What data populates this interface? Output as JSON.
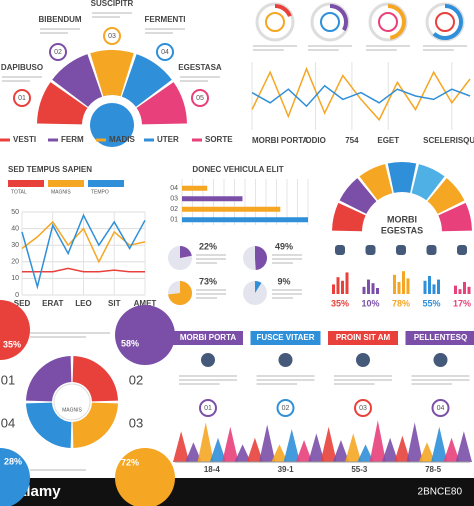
{
  "steps": {
    "items": [
      {
        "num": "01",
        "title": "DAPIBUSO"
      },
      {
        "num": "02",
        "title": "BIBENDUM"
      },
      {
        "num": "03",
        "title": "SUSCIPITR"
      },
      {
        "num": "04",
        "title": "FERMENTI"
      },
      {
        "num": "05",
        "title": "EGESTASA"
      }
    ],
    "legend": [
      {
        "name": "VESTI",
        "color": "#e8413c"
      },
      {
        "name": "FERM",
        "color": "#7b4fa8"
      },
      {
        "name": "MADIS",
        "color": "#f5a623"
      },
      {
        "name": "UTER",
        "color": "#2f8fd8"
      },
      {
        "name": "SORTE",
        "color": "#e8407a"
      }
    ]
  },
  "chart_data": [
    {
      "type": "line",
      "x": [
        0,
        1,
        2,
        3,
        4,
        5,
        6,
        7,
        8,
        9,
        10,
        11,
        12
      ],
      "xlim": [
        0,
        12
      ],
      "ylim": [
        0,
        100
      ],
      "xticks": [
        {
          "value": 0,
          "label": "MORBI PORTA"
        },
        {
          "value": 3.5,
          "label": "ODIO"
        },
        {
          "value": 5.5,
          "label": "754"
        },
        {
          "value": 7.5,
          "label": "EGET"
        },
        {
          "value": 11,
          "label": "SCELERISQUE"
        }
      ],
      "series": [
        {
          "color": "#f5a623",
          "values": [
            30,
            85,
            20,
            90,
            25,
            80,
            45,
            15,
            70,
            30,
            85,
            40,
            75
          ]
        },
        {
          "color": "#2f8fd8",
          "values": [
            55,
            40,
            60,
            35,
            65,
            45,
            55,
            40,
            60,
            50,
            45,
            60,
            50
          ]
        }
      ]
    },
    {
      "type": "line",
      "title": "SED TEMPUS SAPIEN",
      "x": [
        0,
        1,
        2,
        3,
        4,
        5,
        6,
        7,
        8
      ],
      "xlim": [
        0,
        8
      ],
      "ylim": [
        0,
        50
      ],
      "yticks": [
        0,
        10,
        20,
        30,
        40,
        50
      ],
      "grid": true,
      "xticks": [
        {
          "value": 0,
          "label": "SED"
        },
        {
          "value": 2,
          "label": "ERAT"
        },
        {
          "value": 4,
          "label": "LEO"
        },
        {
          "value": 6,
          "label": "SIT"
        },
        {
          "value": 8,
          "label": "AMET"
        }
      ],
      "series": [
        {
          "name": "TOTAL",
          "color": "#e8413c",
          "values": [
            14,
            14,
            14,
            16,
            14,
            14,
            15,
            14,
            14
          ]
        },
        {
          "name": "MAGNIS",
          "color": "#f5a623",
          "values": [
            28,
            35,
            44,
            30,
            40,
            20,
            38,
            30,
            32
          ]
        },
        {
          "name": "TEMPO",
          "color": "#2f8fd8",
          "values": [
            38,
            5,
            42,
            25,
            48,
            30,
            44,
            28,
            45
          ]
        }
      ]
    },
    {
      "type": "bar",
      "title": "DONEC VEHICULA ELIT",
      "categories": [
        "04",
        "03",
        "02",
        "01"
      ],
      "values": [
        20,
        48,
        78,
        100
      ],
      "xlim": [
        0,
        100
      ],
      "colors": [
        "#f5a623",
        "#7b4fa8",
        "#f5a623",
        "#2f8fd8"
      ]
    },
    {
      "type": "spike",
      "categories": [
        "18-4",
        "39-1",
        "55-3",
        "78-5"
      ],
      "ylim": [
        0,
        100
      ],
      "series": [
        {
          "color": "#e8413c",
          "values": [
            70,
            55,
            80,
            60
          ]
        },
        {
          "color": "#7b4fa8",
          "values": [
            45,
            85,
            50,
            90
          ]
        },
        {
          "color": "#f5a623",
          "values": [
            90,
            40,
            65,
            45
          ]
        },
        {
          "color": "#2f8fd8",
          "values": [
            55,
            75,
            40,
            80
          ]
        },
        {
          "color": "#e8407a",
          "values": [
            80,
            50,
            95,
            55
          ]
        },
        {
          "color": "#7b4fa8",
          "values": [
            40,
            65,
            55,
            70
          ]
        }
      ]
    }
  ],
  "pies": [
    {
      "value": 22,
      "label": "22%",
      "color": "#7b4fa8"
    },
    {
      "value": 49,
      "label": "49%",
      "color": "#7b4fa8"
    },
    {
      "value": 73,
      "label": "73%",
      "color": "#f5a623"
    },
    {
      "value": 9,
      "label": "9%",
      "color": "#2f8fd8"
    }
  ],
  "gauge": {
    "title": [
      "MORBI",
      "EGESTAS"
    ],
    "indicators": [
      {
        "label": "35%",
        "color": "#e8413c",
        "bars": [
          40,
          70,
          55,
          90
        ]
      },
      {
        "label": "10%",
        "color": "#7b4fa8",
        "bars": [
          30,
          60,
          45,
          25
        ]
      },
      {
        "label": "78%",
        "color": "#f5a623",
        "bars": [
          80,
          50,
          95,
          65
        ]
      },
      {
        "label": "55%",
        "color": "#2f8fd8",
        "bars": [
          55,
          75,
          40,
          60
        ]
      },
      {
        "label": "17%",
        "color": "#e8407a",
        "bars": [
          35,
          20,
          50,
          30
        ]
      }
    ]
  },
  "quadrants": {
    "center": "MAGNIS",
    "numbers": [
      "01",
      "02",
      "03",
      "04"
    ],
    "corners": [
      "35%",
      "58%",
      "28%",
      "72%"
    ]
  },
  "tabs": [
    {
      "title": "MORBI PORTA",
      "num": "01",
      "color": "#7b4fa8"
    },
    {
      "title": "FUSCE VITAER",
      "num": "02",
      "color": "#2f8fd8"
    },
    {
      "title": "PROIN SIT AM",
      "num": "03",
      "color": "#e8413c"
    },
    {
      "title": "PELLENTESQ",
      "num": "04",
      "color": "#7b4fa8"
    }
  ],
  "watermark": {
    "brand": "alamy",
    "id": "2BNCE80"
  }
}
